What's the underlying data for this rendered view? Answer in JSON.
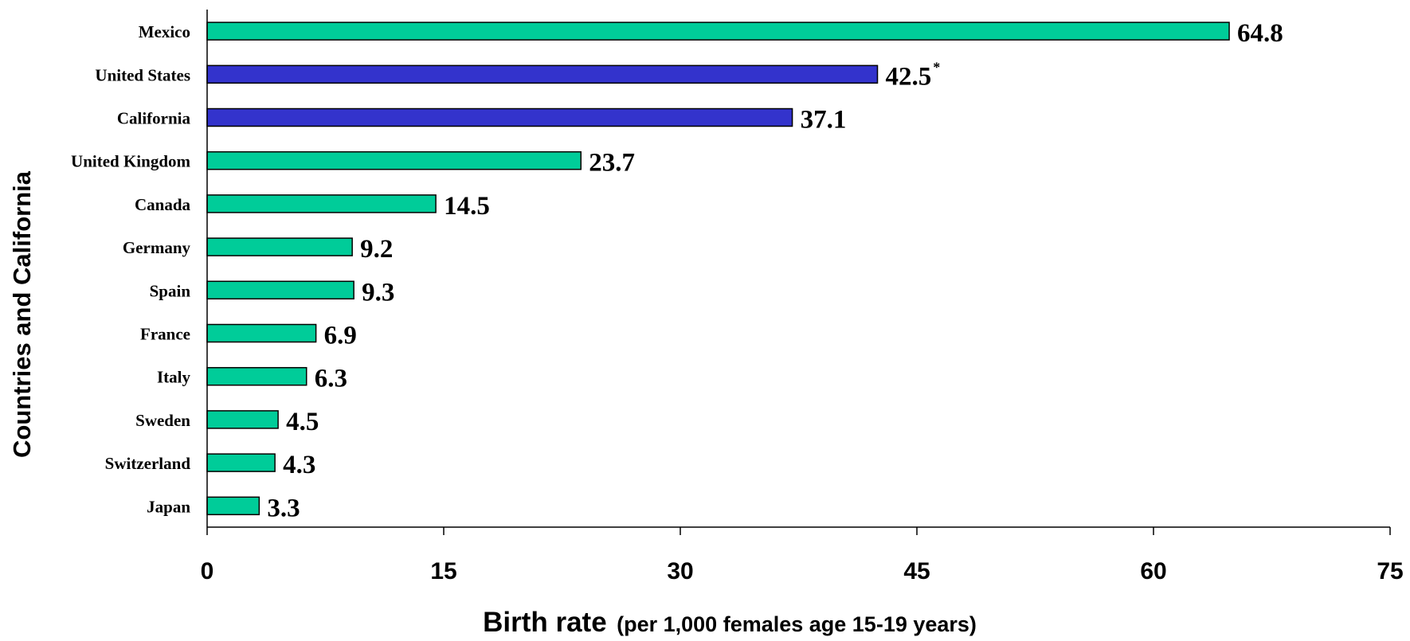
{
  "chart_data": {
    "type": "bar",
    "orientation": "horizontal",
    "categories": [
      "Mexico",
      "United States",
      "California",
      "United Kingdom",
      "Canada",
      "Germany",
      "Spain",
      "France",
      "Italy",
      "Sweden",
      "Switzerland",
      "Japan"
    ],
    "values": [
      64.8,
      42.5,
      37.1,
      23.7,
      14.5,
      9.2,
      9.3,
      6.9,
      6.3,
      4.5,
      4.3,
      3.3
    ],
    "value_labels": [
      "64.8",
      "42.5",
      "37.1",
      "23.7",
      "14.5",
      "9.2",
      "9.3",
      "6.9",
      "6.3",
      "4.5",
      "4.3",
      "3.3"
    ],
    "annotations": [
      {
        "category": "United States",
        "text": "*"
      }
    ],
    "highlight_categories": [
      "United States",
      "California"
    ],
    "colors": {
      "default": "#00CC99",
      "highlight": "#3333CC",
      "outline": "#000000"
    },
    "xlim": [
      0,
      75
    ],
    "xticks": [
      0,
      15,
      30,
      45,
      60,
      75
    ],
    "xlabel_main": "Birth rate",
    "xlabel_sub": "(per 1,000 females age 15-19 years)",
    "ylabel": "Countries and California",
    "grid": false,
    "legend": "none"
  }
}
